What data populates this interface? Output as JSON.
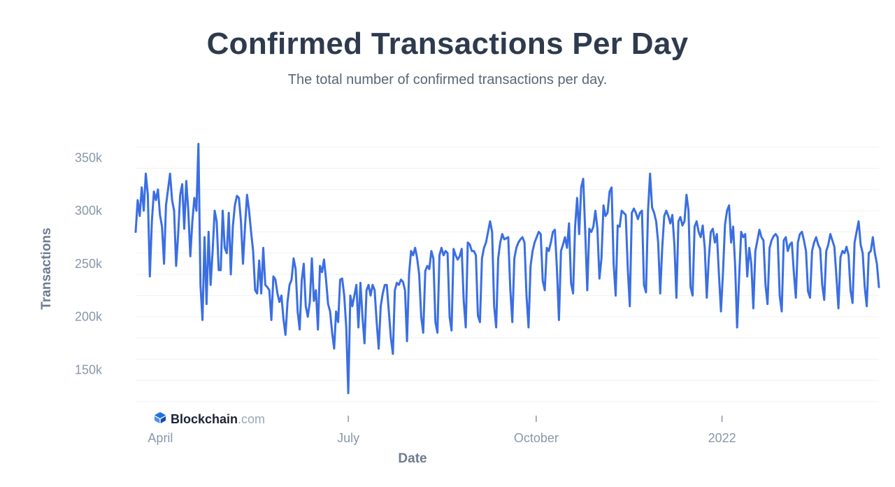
{
  "chart_data": {
    "type": "line",
    "title": "Confirmed Transactions Per Day",
    "subtitle": "The total number of confirmed transactions per day.",
    "xlabel": "Date",
    "ylabel": "Transactions",
    "ylim": [
      120000,
      370000
    ],
    "yticks": [
      {
        "value": 150000,
        "label": "150k"
      },
      {
        "value": 200000,
        "label": "200k"
      },
      {
        "value": 250000,
        "label": "250k"
      },
      {
        "value": 300000,
        "label": "300k"
      },
      {
        "value": 350000,
        "label": "350k"
      }
    ],
    "xdomain_days": [
      0,
      360
    ],
    "xticks": [
      {
        "day": 12,
        "label": "April"
      },
      {
        "day": 103,
        "label": "July"
      },
      {
        "day": 194,
        "label": "October"
      },
      {
        "day": 284,
        "label": "2022"
      }
    ],
    "grid": true,
    "series": [
      {
        "name": "Transactions",
        "color": "#3a6ee3",
        "values": [
          280000,
          310000,
          295000,
          322000,
          300000,
          335000,
          315000,
          238000,
          290000,
          318000,
          310000,
          320000,
          296000,
          285000,
          250000,
          305000,
          320000,
          335000,
          310000,
          300000,
          248000,
          278000,
          315000,
          325000,
          283000,
          328000,
          300000,
          257000,
          290000,
          312000,
          300000,
          363000,
          230000,
          197000,
          275000,
          212000,
          280000,
          230000,
          262000,
          300000,
          290000,
          244000,
          244000,
          300000,
          265000,
          260000,
          298000,
          240000,
          285000,
          305000,
          314000,
          312000,
          290000,
          250000,
          285000,
          315000,
          300000,
          280000,
          262000,
          225000,
          222000,
          253000,
          222000,
          265000,
          230000,
          228000,
          225000,
          197000,
          238000,
          235000,
          222000,
          214000,
          220000,
          198000,
          183000,
          214000,
          230000,
          235000,
          255000,
          245000,
          205000,
          188000,
          234000,
          250000,
          210000,
          200000,
          214000,
          255000,
          215000,
          225000,
          188000,
          248000,
          242000,
          254000,
          235000,
          212000,
          205000,
          185000,
          170000,
          205000,
          195000,
          235000,
          236000,
          220000,
          190000,
          128000,
          220000,
          210000,
          220000,
          230000,
          190000,
          232000,
          200000,
          175000,
          225000,
          230000,
          220000,
          230000,
          225000,
          195000,
          170000,
          210000,
          222000,
          230000,
          230000,
          205000,
          180000,
          165000,
          225000,
          232000,
          230000,
          235000,
          233000,
          225000,
          177000,
          240000,
          262000,
          258000,
          265000,
          255000,
          240000,
          200000,
          185000,
          243000,
          248000,
          245000,
          262000,
          255000,
          195000,
          185000,
          258000,
          265000,
          258000,
          262000,
          260000,
          200000,
          187000,
          264000,
          258000,
          254000,
          257000,
          264000,
          215000,
          190000,
          270000,
          268000,
          262000,
          262000,
          258000,
          201000,
          195000,
          255000,
          265000,
          270000,
          280000,
          290000,
          280000,
          210000,
          190000,
          255000,
          270000,
          278000,
          273000,
          274000,
          275000,
          226000,
          195000,
          255000,
          265000,
          270000,
          273000,
          275000,
          270000,
          220000,
          190000,
          248000,
          262000,
          270000,
          275000,
          280000,
          278000,
          234000,
          225000,
          265000,
          262000,
          270000,
          280000,
          282000,
          245000,
          197000,
          262000,
          268000,
          275000,
          265000,
          288000,
          232000,
          222000,
          285000,
          312000,
          278000,
          322000,
          330000,
          280000,
          225000,
          283000,
          280000,
          285000,
          300000,
          283000,
          236000,
          255000,
          305000,
          295000,
          298000,
          318000,
          322000,
          250000,
          220000,
          286000,
          285000,
          300000,
          298000,
          296000,
          246000,
          210000,
          298000,
          302000,
          298000,
          292000,
          298000,
          300000,
          230000,
          223000,
          300000,
          335000,
          303000,
          298000,
          290000,
          270000,
          222000,
          265000,
          295000,
          300000,
          295000,
          288000,
          296000,
          268000,
          218000,
          290000,
          294000,
          286000,
          290000,
          315000,
          300000,
          228000,
          220000,
          285000,
          290000,
          280000,
          275000,
          286000,
          265000,
          218000,
          255000,
          280000,
          283000,
          270000,
          278000,
          240000,
          205000,
          242000,
          287000,
          300000,
          305000,
          270000,
          285000,
          248000,
          190000,
          237000,
          280000,
          275000,
          278000,
          238000,
          265000,
          250000,
          208000,
          262000,
          272000,
          282000,
          275000,
          272000,
          230000,
          212000,
          265000,
          272000,
          276000,
          278000,
          275000,
          220000,
          205000,
          272000,
          275000,
          262000,
          268000,
          270000,
          242000,
          218000,
          270000,
          278000,
          280000,
          272000,
          262000,
          224000,
          218000,
          262000,
          270000,
          275000,
          268000,
          264000,
          230000,
          216000,
          262000,
          268000,
          278000,
          272000,
          266000,
          238000,
          208000,
          256000,
          262000,
          260000,
          266000,
          258000,
          225000,
          213000,
          270000,
          280000,
          290000,
          268000,
          260000,
          228000,
          210000,
          260000,
          262000,
          275000,
          260000,
          250000,
          228000
        ]
      }
    ]
  },
  "brand": {
    "name_strong": "Blockchain",
    "name_light": ".com",
    "icon": "blockchain-cube-icon"
  }
}
